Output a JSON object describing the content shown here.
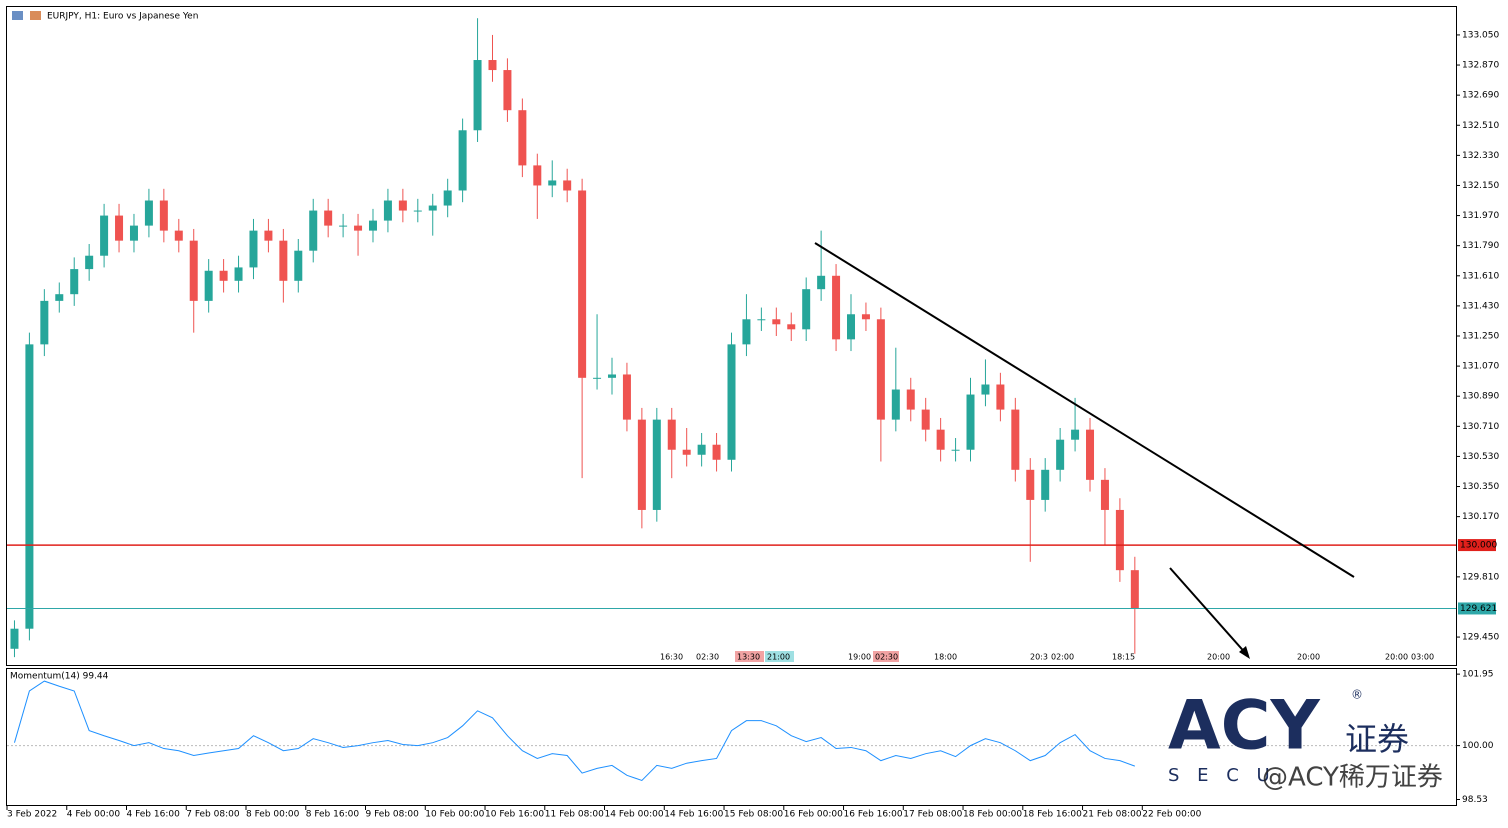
{
  "chart_data": [
    {
      "type": "candlestick",
      "title": "EURJPY, H1:  Euro vs Japanese Yen",
      "up_color": "#26a69a",
      "down_color": "#ef5350",
      "open": [
        129.38,
        129.5,
        131.2,
        131.46,
        131.5,
        131.65,
        131.73,
        131.97,
        131.82,
        131.91,
        132.06,
        131.88,
        131.82,
        131.46,
        131.64,
        131.58,
        131.66,
        131.88,
        131.82,
        131.58,
        131.76,
        132.0,
        131.91,
        131.91,
        131.88,
        131.94,
        132.06,
        132.0,
        132.0,
        132.03,
        132.12,
        132.48,
        132.9,
        132.84,
        132.6,
        132.27,
        132.15,
        132.18,
        132.12,
        131.0,
        131.0,
        131.02,
        130.75,
        130.21,
        130.75,
        130.57,
        130.54,
        130.6,
        130.51,
        131.2,
        131.35,
        131.35,
        131.32,
        131.29,
        131.53,
        131.61,
        131.23,
        131.38,
        131.35,
        130.75,
        130.93,
        130.81,
        130.69,
        130.57,
        130.57,
        130.9,
        130.96,
        130.81,
        130.45,
        130.27,
        130.45,
        130.63,
        130.69,
        130.39,
        130.21,
        129.85
      ],
      "high": [
        129.55,
        131.27,
        131.53,
        131.57,
        131.72,
        131.8,
        132.04,
        132.04,
        131.98,
        132.13,
        132.13,
        131.95,
        131.89,
        131.71,
        131.71,
        131.73,
        131.95,
        131.95,
        131.89,
        131.83,
        132.07,
        132.07,
        131.98,
        131.98,
        132.01,
        132.13,
        132.13,
        132.07,
        132.1,
        132.19,
        132.55,
        133.15,
        133.05,
        132.91,
        132.67,
        132.34,
        132.3,
        132.25,
        132.19,
        131.38,
        131.12,
        131.09,
        130.82,
        130.82,
        130.82,
        130.7,
        130.67,
        130.67,
        131.27,
        131.5,
        131.42,
        131.42,
        131.39,
        131.6,
        131.88,
        131.68,
        131.5,
        131.45,
        131.42,
        131.18,
        131.0,
        130.88,
        130.76,
        130.64,
        131.0,
        131.11,
        131.03,
        130.88,
        130.52,
        130.52,
        130.7,
        130.88,
        130.76,
        130.46,
        130.28,
        129.93
      ],
      "low": [
        129.33,
        129.43,
        131.13,
        131.39,
        131.43,
        131.58,
        131.66,
        131.75,
        131.75,
        131.84,
        131.81,
        131.75,
        131.27,
        131.39,
        131.51,
        131.51,
        131.59,
        131.75,
        131.45,
        131.51,
        131.69,
        131.84,
        131.84,
        131.73,
        131.81,
        131.87,
        131.93,
        131.93,
        131.85,
        131.96,
        132.05,
        132.41,
        132.77,
        132.53,
        132.2,
        131.95,
        132.08,
        132.05,
        130.4,
        130.93,
        130.9,
        130.68,
        130.1,
        130.14,
        130.4,
        130.47,
        130.47,
        130.44,
        130.44,
        131.13,
        131.28,
        131.25,
        131.22,
        131.22,
        131.46,
        131.16,
        131.16,
        131.28,
        130.5,
        130.68,
        130.74,
        130.62,
        130.5,
        130.5,
        130.5,
        130.83,
        130.74,
        130.38,
        129.9,
        130.2,
        130.38,
        130.56,
        130.32,
        130.0,
        129.78,
        129.35
      ],
      "close": [
        129.5,
        131.2,
        131.46,
        131.5,
        131.65,
        131.73,
        131.97,
        131.82,
        131.91,
        132.06,
        131.88,
        131.82,
        131.46,
        131.64,
        131.58,
        131.66,
        131.88,
        131.82,
        131.58,
        131.76,
        132.0,
        131.91,
        131.91,
        131.88,
        131.94,
        132.06,
        132.0,
        132.0,
        132.03,
        132.12,
        132.48,
        132.9,
        132.84,
        132.6,
        132.27,
        132.15,
        132.18,
        132.12,
        131.0,
        131.0,
        131.02,
        130.75,
        130.21,
        130.75,
        130.57,
        130.54,
        130.6,
        130.51,
        131.2,
        131.35,
        131.35,
        131.32,
        131.29,
        131.53,
        131.61,
        131.23,
        131.38,
        131.35,
        130.75,
        130.93,
        130.81,
        130.69,
        130.57,
        130.57,
        130.9,
        130.96,
        130.81,
        130.45,
        130.27,
        130.45,
        130.63,
        130.69,
        130.39,
        130.21,
        129.85,
        129.62
      ],
      "xlim": [
        0,
        97
      ],
      "ylim": [
        129.283,
        133.217
      ],
      "yticks": [
        {
          "value": 133.05,
          "label": "133.050"
        },
        {
          "value": 132.87,
          "label": "132.870"
        },
        {
          "value": 132.69,
          "label": "132.690"
        },
        {
          "value": 132.51,
          "label": "132.510"
        },
        {
          "value": 132.33,
          "label": "132.330"
        },
        {
          "value": 132.15,
          "label": "132.150"
        },
        {
          "value": 131.97,
          "label": "131.970"
        },
        {
          "value": 131.79,
          "label": "131.790"
        },
        {
          "value": 131.61,
          "label": "131.610"
        },
        {
          "value": 131.43,
          "label": "131.430"
        },
        {
          "value": 131.25,
          "label": "131.250"
        },
        {
          "value": 131.07,
          "label": "131.070"
        },
        {
          "value": 130.89,
          "label": "130.890"
        },
        {
          "value": 130.71,
          "label": "130.710"
        },
        {
          "value": 130.53,
          "label": "130.530"
        },
        {
          "value": 130.35,
          "label": "130.350"
        },
        {
          "value": 130.17,
          "label": "130.170"
        },
        {
          "value": 129.81,
          "label": "129.810"
        },
        {
          "value": 129.45,
          "label": "129.450"
        }
      ],
      "levels": [
        {
          "value": 130,
          "label": "130.000",
          "color": "#e0201b"
        },
        {
          "value": 129.621,
          "label": "129.621",
          "color": "#2ea7a8"
        }
      ],
      "xticks": [
        {
          "value": 0,
          "label": "3 Feb 2022"
        },
        {
          "value": 4,
          "label": "4 Feb 00:00"
        },
        {
          "value": 8,
          "label": "4 Feb 16:00"
        },
        {
          "value": 12,
          "label": "7 Feb 08:00"
        },
        {
          "value": 16,
          "label": "8 Feb 00:00"
        },
        {
          "value": 20,
          "label": "8 Feb 16:00"
        },
        {
          "value": 24,
          "label": "9 Feb 08:00"
        },
        {
          "value": 28,
          "label": "10 Feb 00:00"
        },
        {
          "value": 32,
          "label": "10 Feb 16:00"
        },
        {
          "value": 36,
          "label": "11 Feb 08:00"
        },
        {
          "value": 40,
          "label": "14 Feb 00:00"
        },
        {
          "value": 44,
          "label": "14 Feb 16:00"
        },
        {
          "value": 48,
          "label": "15 Feb 08:00"
        },
        {
          "value": 52,
          "label": "16 Feb 00:00"
        },
        {
          "value": 56,
          "label": "16 Feb 16:00"
        },
        {
          "value": 60,
          "label": "17 Feb 08:00"
        },
        {
          "value": 64,
          "label": "18 Feb 00:00"
        },
        {
          "value": 68,
          "label": "18 Feb 16:00"
        },
        {
          "value": 72,
          "label": "21 Feb 08:00"
        },
        {
          "value": 76,
          "label": "22 Feb 00:00"
        }
      ],
      "event_labels": [
        "16:30",
        "02:30",
        "13:30",
        "21:00",
        "19:00",
        "02:30",
        "18:00",
        "20:3",
        "02:00",
        "18:15",
        "20:00",
        "20:00",
        "20:00",
        "03:00"
      ]
    },
    {
      "type": "line",
      "title": "Momentum(14) 99.44",
      "xlim": [
        0,
        97
      ],
      "series": [
        {
          "color": "#1e90ff",
          "values": [
            100.08,
            101.49,
            101.76,
            101.62,
            101.49,
            100.41,
            100.27,
            100.14,
            100.0,
            100.08,
            99.92,
            99.86,
            99.73,
            99.8,
            99.86,
            99.92,
            100.27,
            100.08,
            99.86,
            99.92,
            100.19,
            100.08,
            99.95,
            100.0,
            100.08,
            100.14,
            100.03,
            100.0,
            100.08,
            100.22,
            100.54,
            100.95,
            100.76,
            100.27,
            99.86,
            99.65,
            99.78,
            99.73,
            99.25,
            99.38,
            99.46,
            99.19,
            99.05,
            99.46,
            99.38,
            99.52,
            99.59,
            99.65,
            100.41,
            100.68,
            100.68,
            100.54,
            100.27,
            100.11,
            100.22,
            99.92,
            99.95,
            99.86,
            99.59,
            99.73,
            99.65,
            99.78,
            99.86,
            99.7,
            100.0,
            100.19,
            100.08,
            99.86,
            99.59,
            99.73,
            100.08,
            100.3,
            99.86,
            99.65,
            99.59,
            99.44
          ]
        }
      ],
      "ylim": [
        98.38,
        102.09
      ],
      "yticks": [
        101.95,
        {
          "value": 100,
          "label": "100.00"
        },
        98.53
      ],
      "level": 100
    }
  ],
  "logo": {
    "brand": "ACY",
    "cn": "证券",
    "sub": "S E C U",
    "mark": "®"
  },
  "watermark": "@ACY稀万证券"
}
